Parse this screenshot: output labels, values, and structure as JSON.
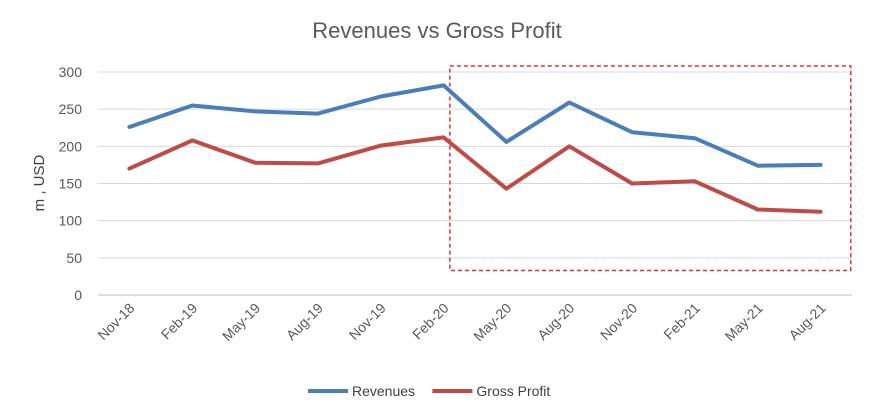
{
  "colors": {
    "revenues": "#4a7ebb",
    "gross_profit": "#be4b48",
    "highlight_box": "#e03030",
    "grid": "#d9d9d9"
  },
  "chart_data": {
    "type": "line",
    "title": "Revenues vs Gross Profit",
    "xlabel": "",
    "ylabel": "m , USD",
    "ylim": [
      0,
      300
    ],
    "yticks": [
      0,
      50,
      100,
      150,
      200,
      250,
      300
    ],
    "grid": true,
    "legend_position": "bottom",
    "categories": [
      "Nov-18",
      "Feb-19",
      "May-19",
      "Aug-19",
      "Nov-19",
      "Feb-20",
      "May-20",
      "Aug-20",
      "Nov-20",
      "Feb-21",
      "May-21",
      "Aug-21"
    ],
    "series": [
      {
        "name": "Revenues",
        "color": "#4a7ebb",
        "values": [
          226,
          255,
          247,
          244,
          267,
          282,
          206,
          259,
          219,
          211,
          174,
          175
        ]
      },
      {
        "name": "Gross Profit",
        "color": "#be4b48",
        "values": [
          170,
          208,
          178,
          177,
          201,
          212,
          143,
          200,
          150,
          153,
          115,
          112
        ]
      }
    ],
    "annotations": [
      {
        "type": "dashed-box",
        "color": "#e03030",
        "from_category": "Feb-20",
        "to_category": "Aug-21",
        "y_from": 33,
        "y_to": 308
      }
    ]
  }
}
